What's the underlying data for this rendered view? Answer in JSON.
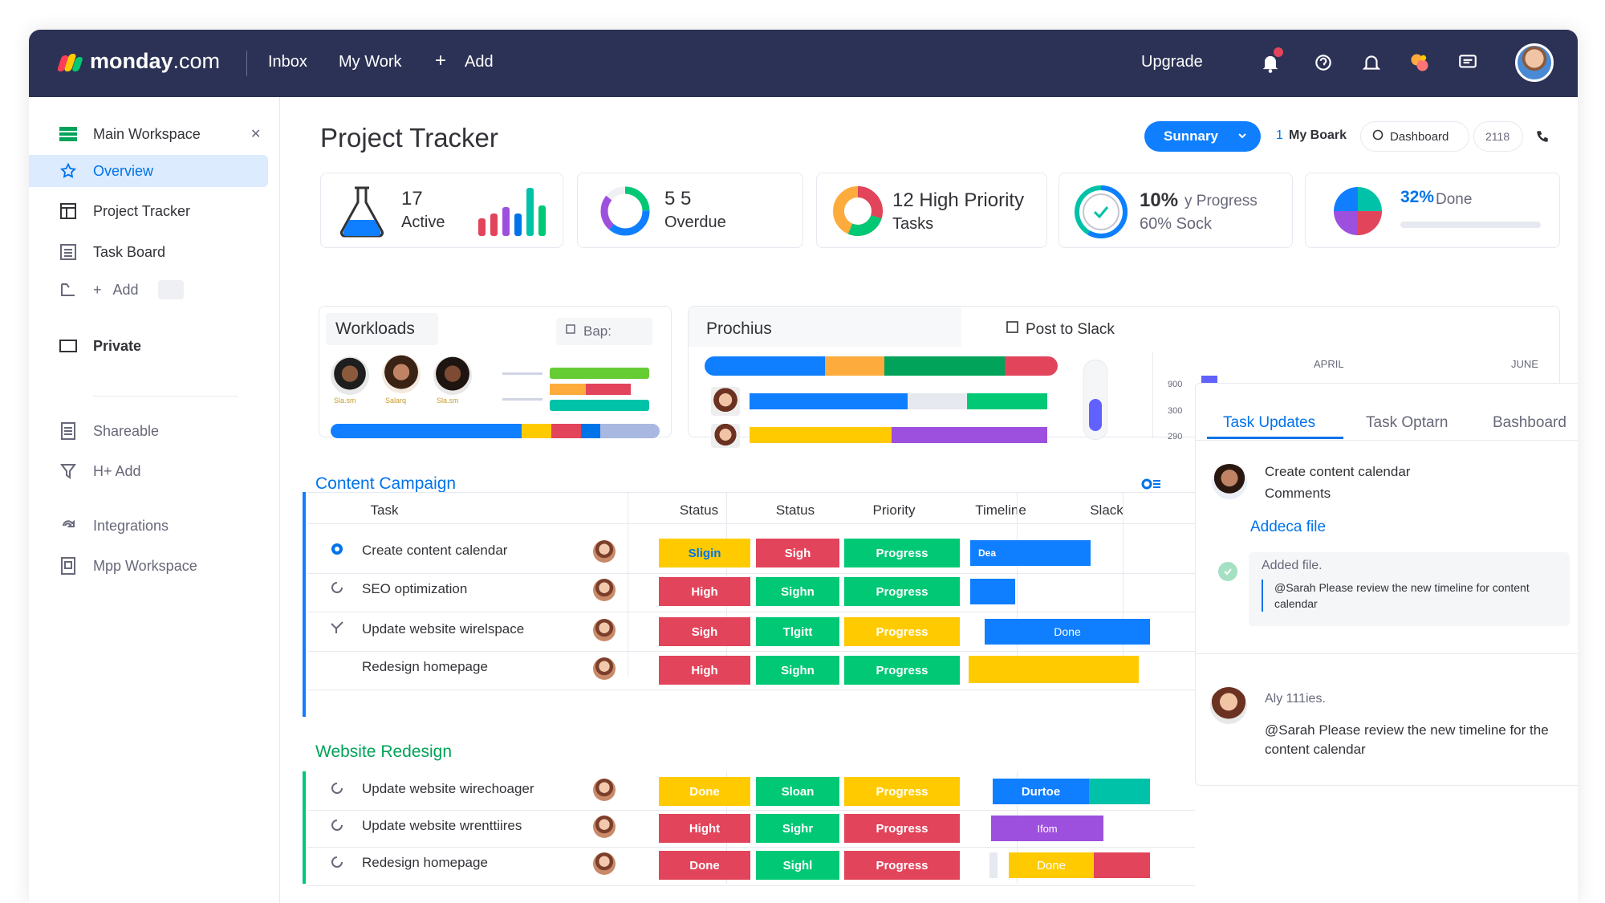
{
  "topbar": {
    "logo_brand": "monday",
    "logo_suffix": ".com",
    "nav": [
      "Inbox",
      "My Work",
      "Add"
    ],
    "add_prefix": "+",
    "upgrade": "Upgrade"
  },
  "sidebar": {
    "workspace": "Main Workspace",
    "items": [
      {
        "label": "Overview"
      },
      {
        "label": "Project Tracker"
      },
      {
        "label": "Task Board"
      },
      {
        "label": "Add"
      },
      {
        "label": "Private"
      },
      {
        "label": "Shareable"
      },
      {
        "label": "H+ Add"
      },
      {
        "label": "Integrations"
      },
      {
        "label": "Mpp Workspace"
      }
    ],
    "add_plus": "+"
  },
  "header": {
    "title": "Project Tracker",
    "summary": "Sunnary",
    "my_board": "My Boark",
    "my_board_num": "1",
    "dashboard": "Dashboard",
    "count": "2118"
  },
  "kpis": [
    {
      "value": "17",
      "label": "Active"
    },
    {
      "value": "5 5",
      "label": "Overdue"
    },
    {
      "value": "12 High Priority",
      "label": "Tasks"
    },
    {
      "value": "10%",
      "extra": "y Progress",
      "label": "60% Sock"
    },
    {
      "value": "32%",
      "label": "Done"
    }
  ],
  "workloads": {
    "title": "Workloads",
    "button": "Bap:",
    "people": [
      "Sla.sm",
      "Salarq",
      "Sla.sm"
    ]
  },
  "progress_card": {
    "title": "Prochius",
    "post": "Post to Slack",
    "months": [
      "APRIL",
      "JUNE"
    ],
    "yticks": [
      "900",
      "300",
      "290"
    ]
  },
  "content_campaign": {
    "title": "Content Campaign",
    "columns": [
      "Task",
      "Status",
      "Status",
      "Priority",
      "Timeline",
      "Slack"
    ],
    "rows": [
      {
        "task": "Create content calendar",
        "s1": "Sligin",
        "s2": "Sigh",
        "p": "Progress",
        "tl": "Dea"
      },
      {
        "task": "SEO optimization",
        "s1": "High",
        "s2": "Sighn",
        "p": "Progress",
        "tl": ""
      },
      {
        "task": "Update website wirelspace",
        "s1": "Sigh",
        "s2": "Tlgitt",
        "p": "Progress",
        "tl": "Done"
      },
      {
        "task": "Redesign homepage",
        "s1": "High",
        "s2": "Sighn",
        "p": "Progress",
        "tl": ""
      }
    ]
  },
  "website_redesign": {
    "title": "Website Redesign",
    "rows": [
      {
        "task": "Update website wirechoager",
        "s1": "Done",
        "s2": "Sloan",
        "p": "Progress",
        "tl": "Durtoe"
      },
      {
        "task": "Update website wrenttiires",
        "s1": "Hight",
        "s2": "Sighr",
        "p": "Progress",
        "tl": "Ifom"
      },
      {
        "task": "Redesign homepage",
        "s1": "Done",
        "s2": "Sighl",
        "p": "Progress",
        "tl": "Done"
      }
    ]
  },
  "right_panel": {
    "tabs": [
      "Task Updates",
      "Task Optarn",
      "Bashboard"
    ],
    "update1_title": "Create content calendar",
    "update1_sub": "Comments",
    "add_file": "Addeca file",
    "added_file": "Added file.",
    "added_note": "@Sarah Please review the new timeline for content calendar",
    "user2": "Aly 111ies.",
    "comment2": "@Sarah Please review the new timeline for the content calendar"
  },
  "colors": {
    "topbar": "#2c3255",
    "accent": "#0073ea",
    "done_green": "#00c875",
    "stuck_red": "#e2445c",
    "working_yellow": "#fdab3d",
    "purple": "#9d50dd"
  }
}
